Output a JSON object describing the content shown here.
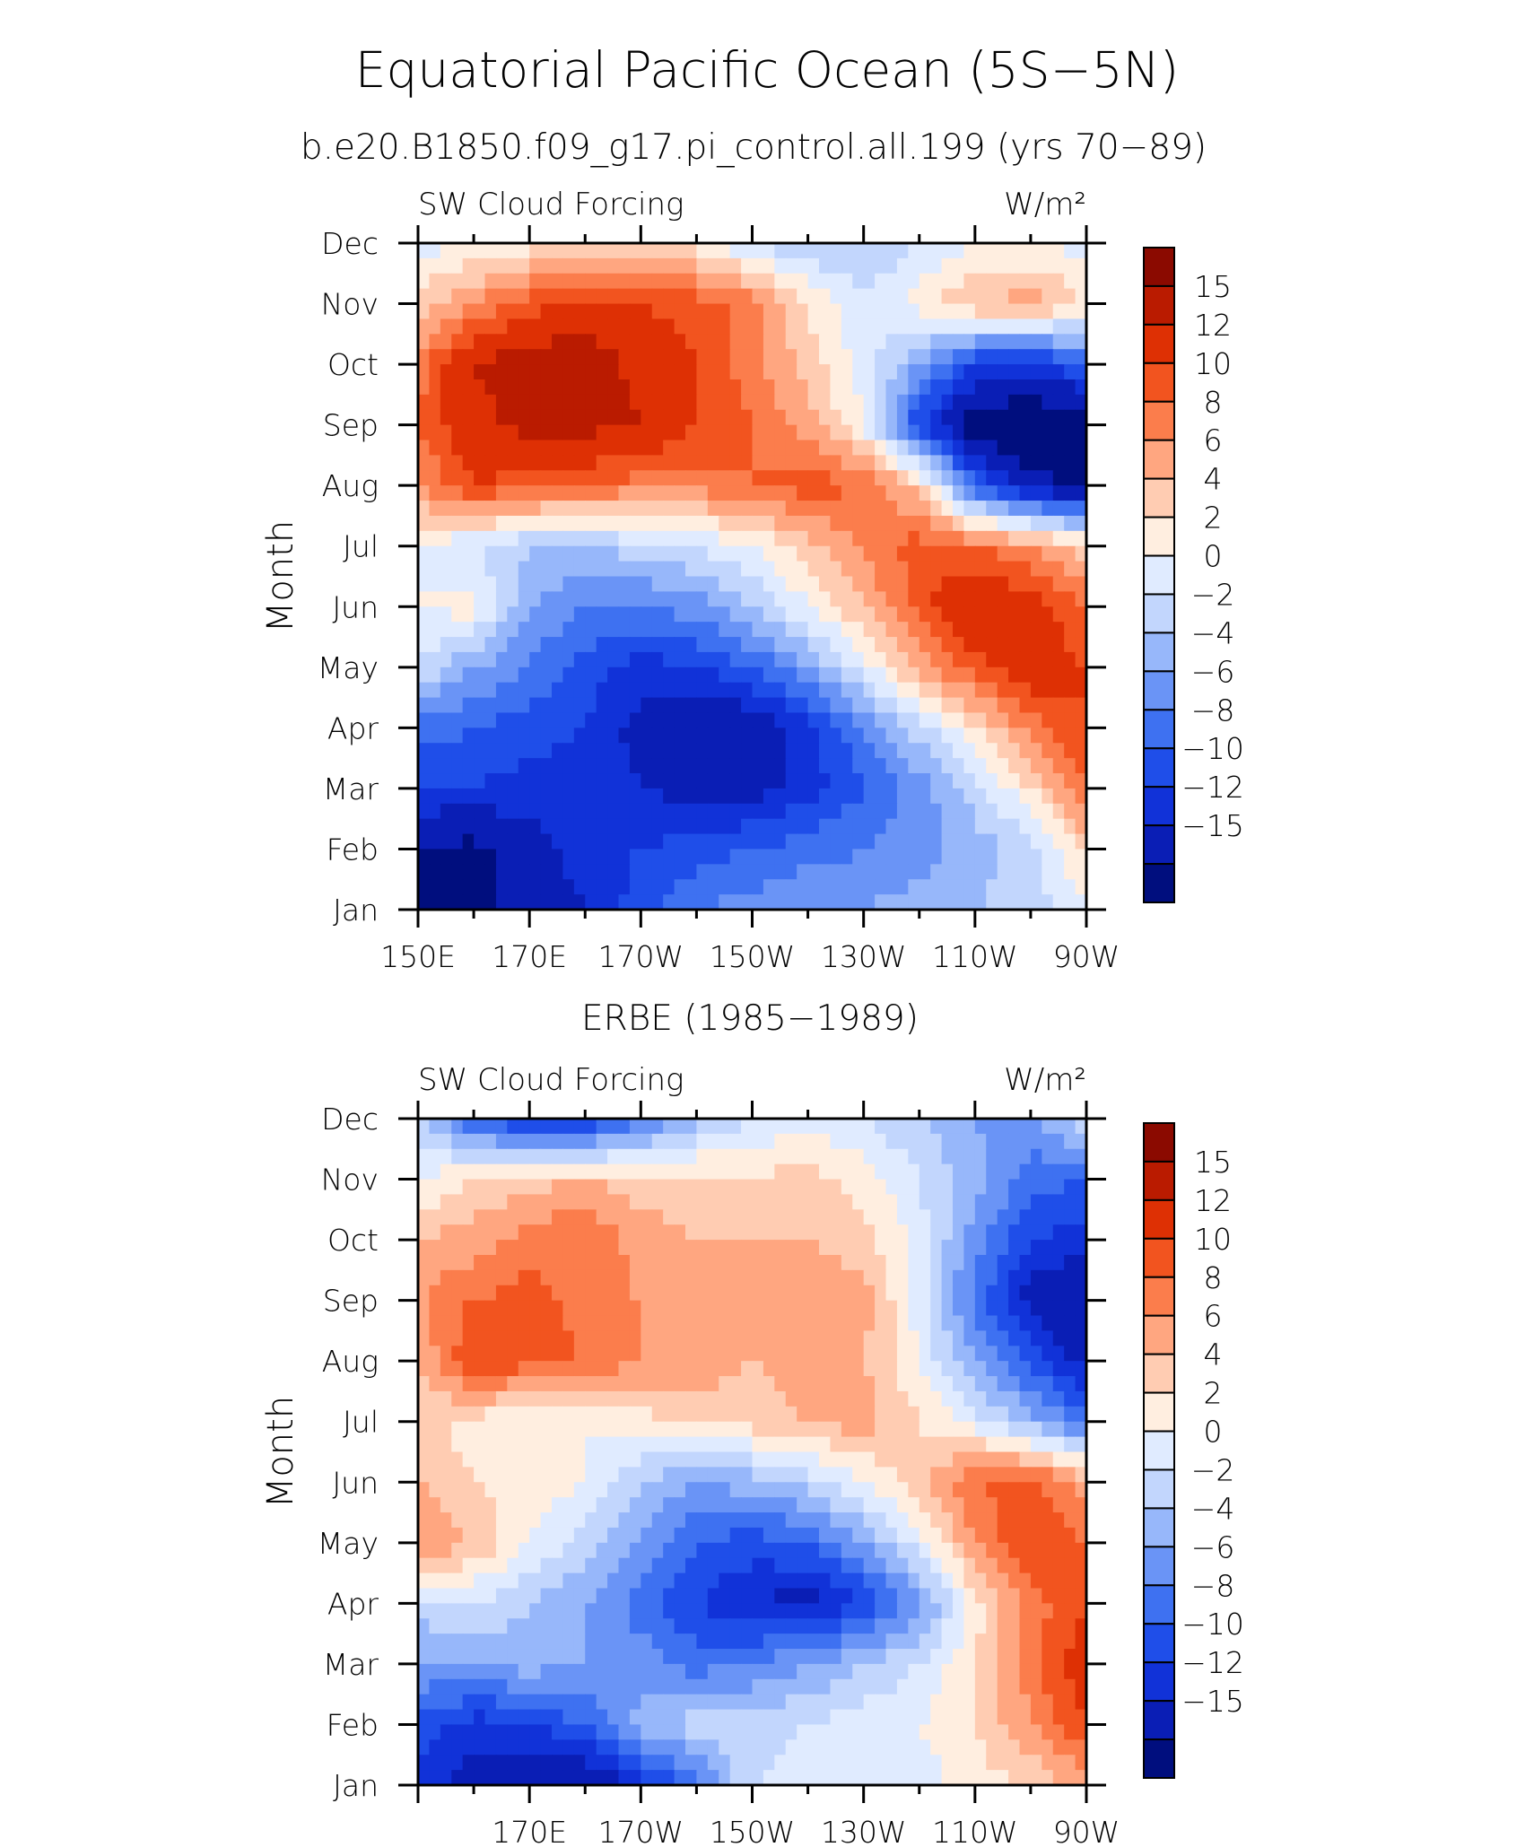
{
  "figure": {
    "title": "Equatorial Pacific Ocean (5S−5N)",
    "subtitle": "b.e20.B1850.f09_g17.pi_control.all.199 (yrs 70−89)",
    "second_panel_title": "ERBE (1985−1989)"
  },
  "chart_data": [
    {
      "type": "heatmap",
      "panel": "model",
      "left_label": "SW Cloud Forcing",
      "right_label": "W/m²",
      "ylabel": "Month",
      "x_ticks": [
        "150E",
        "170E",
        "170W",
        "150W",
        "130W",
        "110W",
        "90W"
      ],
      "x_tick_lon": [
        150,
        170,
        190,
        210,
        230,
        250,
        270
      ],
      "y_ticks": [
        "Jan",
        "Feb",
        "Mar",
        "Apr",
        "May",
        "Jun",
        "Jul",
        "Aug",
        "Sep",
        "Oct",
        "Nov",
        "Dec"
      ],
      "xlim": [
        150,
        270
      ],
      "lon": [
        150,
        160,
        170,
        180,
        190,
        200,
        210,
        220,
        230,
        240,
        250,
        260,
        270
      ],
      "z": [
        [
          -16,
          -16,
          -14,
          -12,
          -9,
          -6,
          -5,
          -4,
          -4,
          -3,
          -2,
          -1,
          1
        ],
        [
          -15,
          -16,
          -13,
          -11,
          -10,
          -9,
          -8,
          -7,
          -6,
          -5,
          -3,
          -1,
          5
        ],
        [
          -10,
          -10,
          -11,
          -11,
          -12,
          -13,
          -13,
          -11,
          -8,
          -5,
          -1,
          4,
          10
        ],
        [
          -7,
          -8,
          -9,
          -10,
          -13,
          -15,
          -14,
          -11,
          -6,
          -1,
          4,
          9,
          12
        ],
        [
          0,
          -4,
          -6,
          -9,
          -11,
          -10,
          -8,
          -4,
          1,
          7,
          11,
          14,
          12
        ],
        [
          2,
          3,
          -4,
          -6,
          -6,
          -5,
          -2,
          2,
          6,
          11,
          15,
          13,
          10
        ],
        [
          2,
          0,
          -2,
          -2,
          -1,
          0,
          2,
          5,
          8,
          11,
          10,
          8,
          5
        ],
        [
          8,
          12,
          11,
          10,
          9,
          9,
          10,
          11,
          10,
          5,
          -8,
          -14,
          -16
        ],
        [
          10,
          14,
          16,
          16,
          15,
          12,
          10,
          7,
          2,
          -10,
          -17,
          -18,
          -17
        ],
        [
          9,
          15,
          17,
          17,
          14,
          12,
          9,
          5,
          1,
          -4,
          -10,
          -11,
          -8
        ],
        [
          5,
          8,
          11,
          13,
          12,
          11,
          9,
          4,
          0,
          3,
          6,
          7,
          4
        ],
        [
          1,
          2,
          3,
          4,
          4,
          3,
          0,
          -2,
          -2,
          0,
          2,
          2,
          1
        ]
      ]
    },
    {
      "type": "heatmap",
      "panel": "ERBE",
      "left_label": "SW Cloud Forcing",
      "right_label": "W/m²",
      "ylabel": "Month",
      "x_ticks": [
        "170E",
        "170W",
        "150W",
        "130W",
        "110W",
        "90W"
      ],
      "x_tick_lon": [
        170,
        190,
        210,
        230,
        250,
        270
      ],
      "y_ticks": [
        "Jan",
        "Feb",
        "Mar",
        "Apr",
        "May",
        "Jun",
        "Jul",
        "Aug",
        "Sep",
        "Oct",
        "Nov",
        "Dec"
      ],
      "xlim": [
        150,
        270
      ],
      "lon": [
        150,
        160,
        170,
        180,
        190,
        200,
        210,
        220,
        230,
        240,
        250,
        260,
        270
      ],
      "z": [
        [
          -11,
          -13,
          -14,
          -15,
          -11,
          -7,
          0,
          1,
          2,
          1,
          3,
          4,
          7
        ],
        [
          -9,
          -11,
          -10,
          -8,
          -3,
          -1,
          -1,
          0,
          1,
          2,
          4,
          8,
          12
        ],
        [
          -4,
          -4,
          -3,
          -4,
          -5,
          -7,
          -6,
          -4,
          -2,
          0,
          4,
          9,
          14
        ],
        [
          -1,
          0,
          -2,
          -4,
          -7,
          -10,
          -12,
          -13,
          -10,
          -5,
          3,
          9,
          12
        ],
        [
          8,
          6,
          2,
          -1,
          -4,
          -8,
          -9,
          -8,
          -4,
          1,
          8,
          12,
          10
        ],
        [
          6,
          4,
          3,
          2,
          -2,
          -4,
          -3,
          -1,
          2,
          5,
          10,
          11,
          7
        ],
        [
          5,
          3,
          2,
          2,
          3,
          5,
          5,
          6,
          7,
          4,
          1,
          -3,
          -7
        ],
        [
          6,
          12,
          11,
          10,
          8,
          7,
          6,
          7,
          6,
          2,
          -4,
          -9,
          -13
        ],
        [
          8,
          10,
          11,
          9,
          8,
          7,
          6,
          7,
          7,
          1,
          -7,
          -13,
          -15
        ],
        [
          6,
          7,
          9,
          10,
          7,
          6,
          6,
          6,
          5,
          1,
          -5,
          -10,
          -11
        ],
        [
          2,
          4,
          5,
          6,
          5,
          5,
          4,
          5,
          3,
          0,
          -3,
          -7,
          -8
        ],
        [
          -2,
          -8,
          -11,
          -11,
          -7,
          -3,
          0,
          1,
          0,
          -2,
          -4,
          -5,
          0
        ]
      ]
    }
  ],
  "colorbar": {
    "labels": [
      "15",
      "12",
      "10",
      "8",
      "6",
      "4",
      "2",
      "0",
      "−2",
      "−4",
      "−6",
      "−8",
      "−10",
      "−12",
      "−15"
    ],
    "levels": [
      -15,
      -12,
      -10,
      -8,
      -6,
      -4,
      -2,
      0,
      2,
      4,
      6,
      8,
      10,
      12,
      15
    ],
    "colors": [
      "#000e7e",
      "#0a1eb5",
      "#1132d8",
      "#1f4ee9",
      "#3e71f1",
      "#6a94f6",
      "#97b7fa",
      "#c2d6fd",
      "#e0ebff",
      "#ffeee0",
      "#ffccb2",
      "#ffa680",
      "#fb7d4c",
      "#f2541f",
      "#de3004",
      "#ba1b00",
      "#8b0a00"
    ]
  }
}
